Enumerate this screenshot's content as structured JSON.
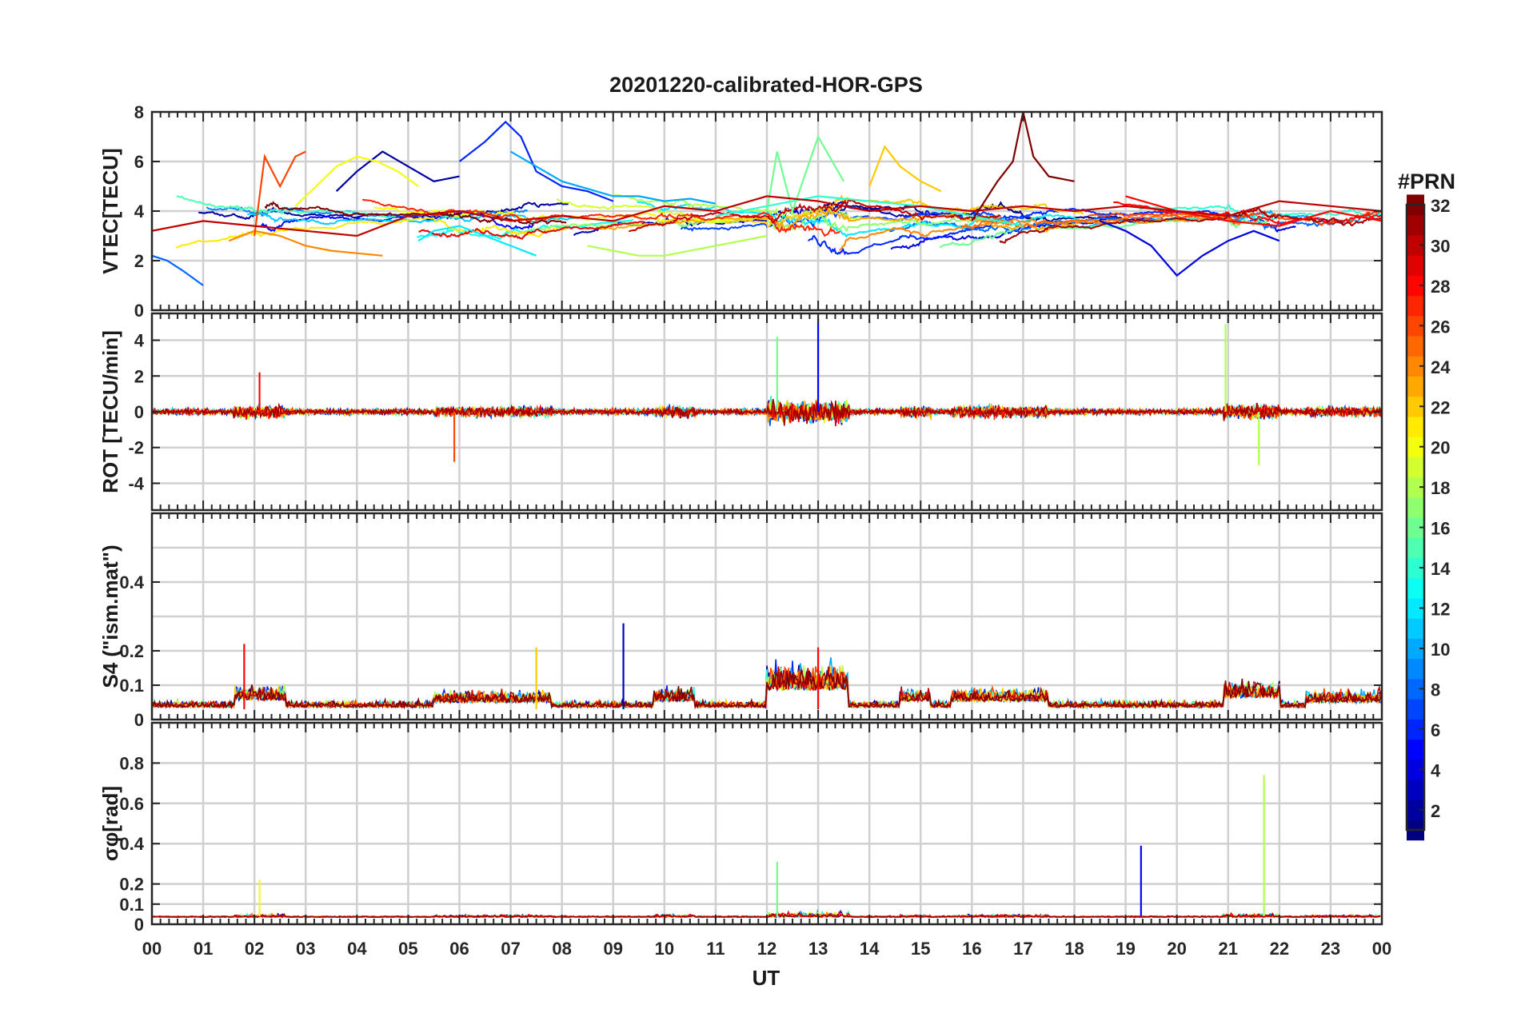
{
  "chart_data": {
    "type": "line",
    "title": "20201220-calibrated-HOR-GPS",
    "xlabel": "UT",
    "x_ticks": [
      "00",
      "01",
      "02",
      "03",
      "04",
      "05",
      "06",
      "07",
      "08",
      "09",
      "10",
      "11",
      "12",
      "13",
      "14",
      "15",
      "16",
      "17",
      "18",
      "19",
      "20",
      "21",
      "22",
      "23",
      "00"
    ],
    "x_range_hours": [
      0,
      24
    ],
    "grid": true,
    "colorbar": {
      "label": "#PRN",
      "range": [
        1,
        32
      ],
      "ticks": [
        2,
        4,
        6,
        8,
        10,
        12,
        14,
        16,
        18,
        20,
        22,
        24,
        26,
        28,
        30,
        32
      ],
      "colormap": "jet",
      "placement": "right"
    },
    "panels": [
      {
        "name": "vtec",
        "ylabel": "VTEC[TECU]",
        "ylim": [
          0,
          8
        ],
        "yticks": [
          0,
          2,
          4,
          6,
          8
        ],
        "ytick_labels": [
          "0",
          "2",
          "4",
          "6",
          "8"
        ],
        "series": [
          {
            "prn": 2,
            "x": [
              3.6,
              4.0,
              4.5,
              5.0,
              5.5,
              6.0
            ],
            "y": [
              4.8,
              5.6,
              6.4,
              5.8,
              5.2,
              5.4
            ]
          },
          {
            "prn": 4,
            "x": [
              18.5,
              19.0,
              19.5,
              20.0,
              20.5,
              21.0,
              21.5,
              22.0
            ],
            "y": [
              3.6,
              3.2,
              2.6,
              1.4,
              2.2,
              2.8,
              3.2,
              2.8
            ]
          },
          {
            "prn": 6,
            "x": [
              6.0,
              6.5,
              6.9,
              7.2,
              7.5,
              8.0,
              8.5,
              9.0
            ],
            "y": [
              6.0,
              6.8,
              7.6,
              7.0,
              5.6,
              5.0,
              4.8,
              4.4
            ]
          },
          {
            "prn": 8,
            "x": [
              0.0,
              0.3,
              0.6,
              1.0
            ],
            "y": [
              2.2,
              2.0,
              1.6,
              1.0
            ]
          },
          {
            "prn": 10,
            "x": [
              7.0,
              7.5,
              8.0,
              8.5,
              9.0,
              9.5,
              10.0,
              10.5,
              11.0
            ],
            "y": [
              6.4,
              5.8,
              5.2,
              4.9,
              4.6,
              4.6,
              4.4,
              4.5,
              4.3
            ]
          },
          {
            "prn": 12,
            "x": [
              5.2,
              5.5,
              6.0,
              6.5,
              7.0,
              7.5
            ],
            "y": [
              2.8,
              3.2,
              3.4,
              3.0,
              2.6,
              2.2
            ]
          },
          {
            "prn": 14,
            "x": [
              11.0,
              12.0,
              13.0,
              14.0,
              15.0,
              16.0,
              17.0
            ],
            "y": [
              3.8,
              4.2,
              4.6,
              4.4,
              4.2,
              3.8,
              3.4
            ]
          },
          {
            "prn": 16,
            "x": [
              12.0,
              12.2,
              12.5,
              13.0,
              13.5
            ],
            "y": [
              4.0,
              6.4,
              4.0,
              7.0,
              5.2
            ]
          },
          {
            "prn": 18,
            "x": [
              8.5,
              9.0,
              9.5,
              10.0,
              10.5,
              11.0,
              11.5,
              12.0
            ],
            "y": [
              2.6,
              2.4,
              2.2,
              2.2,
              2.4,
              2.6,
              2.8,
              3.0
            ]
          },
          {
            "prn": 20,
            "x": [
              2.8,
              3.2,
              3.6,
              4.0,
              4.4,
              4.8,
              5.2
            ],
            "y": [
              4.2,
              5.0,
              5.8,
              6.2,
              6.0,
              5.6,
              5.0
            ]
          },
          {
            "prn": 22,
            "x": [
              14.0,
              14.3,
              14.6,
              15.0,
              15.4
            ],
            "y": [
              5.0,
              6.6,
              5.8,
              5.2,
              4.8
            ]
          },
          {
            "prn": 24,
            "x": [
              1.5,
              2.0,
              2.5,
              3.0,
              3.5,
              4.0,
              4.5
            ],
            "y": [
              2.8,
              3.2,
              3.0,
              2.6,
              2.4,
              2.3,
              2.2
            ]
          },
          {
            "prn": 26,
            "x": [
              2.0,
              2.2,
              2.5,
              2.8,
              3.0
            ],
            "y": [
              3.0,
              6.2,
              5.0,
              6.2,
              6.4
            ]
          },
          {
            "prn": 28,
            "x": [
              19.0,
              20.0,
              21.0,
              22.0,
              23.0,
              24.0
            ],
            "y": [
              4.6,
              4.0,
              3.6,
              3.4,
              4.0,
              3.6
            ]
          },
          {
            "prn": 30,
            "x": [
              0.0,
              1.0,
              2.0,
              3.0,
              4.0,
              5.0,
              6.0,
              7.0,
              8.0,
              9.0,
              10.0,
              11.0,
              12.0,
              13.0,
              14.0,
              15.0,
              16.0,
              17.0,
              18.0,
              19.0,
              20.0,
              21.0,
              22.0,
              23.0,
              24.0
            ],
            "y": [
              3.2,
              3.6,
              3.4,
              3.2,
              3.0,
              3.8,
              4.0,
              3.6,
              3.8,
              3.6,
              4.2,
              4.0,
              4.6,
              4.4,
              4.0,
              4.2,
              4.0,
              4.2,
              4.0,
              4.2,
              4.0,
              3.8,
              4.4,
              4.2,
              4.0
            ]
          },
          {
            "prn": 32,
            "x": [
              16.0,
              16.5,
              16.8,
              17.0,
              17.2,
              17.5,
              18.0
            ],
            "y": [
              3.6,
              5.2,
              6.0,
              8.0,
              6.2,
              5.4,
              5.2
            ]
          }
        ]
      },
      {
        "name": "rot",
        "ylabel": "ROT [TECU/min]",
        "ylim": [
          -5.5,
          5.5
        ],
        "yticks": [
          -4,
          -2,
          0,
          2,
          4
        ],
        "ytick_labels": [
          "-4",
          "-2",
          "0",
          "2",
          "4"
        ],
        "series": [
          {
            "prn": 5,
            "x": [
              13.0
            ],
            "y": [
              5.2
            ]
          },
          {
            "prn": 16,
            "x": [
              12.2
            ],
            "y": [
              4.2
            ]
          },
          {
            "prn": 18,
            "x": [
              20.95,
              21.6
            ],
            "y": [
              4.9,
              -3.0
            ]
          },
          {
            "prn": 26,
            "x": [
              5.9
            ],
            "y": [
              -2.8
            ]
          },
          {
            "prn": 28,
            "x": [
              2.1
            ],
            "y": [
              2.2
            ]
          }
        ]
      },
      {
        "name": "s4",
        "ylabel": "S4 (\"ism.mat\")",
        "ylim": [
          0,
          0.6
        ],
        "yticks": [
          0,
          0.1,
          0.2,
          0.4
        ],
        "ytick_labels": [
          "0",
          "0.1",
          "0.2",
          "0.4"
        ],
        "series": [
          {
            "prn": 3,
            "x": [
              9.2
            ],
            "y": [
              0.28
            ]
          },
          {
            "prn": 22,
            "x": [
              7.5
            ],
            "y": [
              0.21
            ]
          },
          {
            "prn": 28,
            "x": [
              1.8,
              13.0
            ],
            "y": [
              0.22,
              0.21
            ]
          }
        ]
      },
      {
        "name": "sigma_phi",
        "ylabel": "σφ[rad]",
        "ylim": [
          0,
          1.0
        ],
        "yticks": [
          0,
          0.1,
          0.2,
          0.4,
          0.6,
          0.8
        ],
        "ytick_labels": [
          "0",
          "0.1",
          "0.2",
          "0.4",
          "0.6",
          "0.8"
        ],
        "series": [
          {
            "prn": 5,
            "x": [
              19.3
            ],
            "y": [
              0.39
            ]
          },
          {
            "prn": 16,
            "x": [
              12.2
            ],
            "y": [
              0.31
            ]
          },
          {
            "prn": 18,
            "x": [
              21.7
            ],
            "y": [
              0.74
            ]
          },
          {
            "prn": 20,
            "x": [
              2.1
            ],
            "y": [
              0.22
            ]
          }
        ]
      }
    ]
  }
}
